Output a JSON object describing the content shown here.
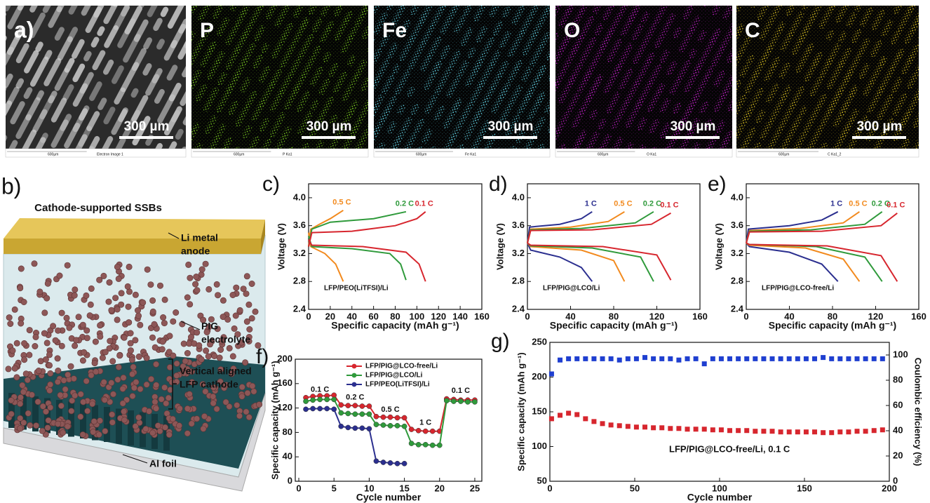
{
  "sem": {
    "panels": [
      {
        "label": "a)",
        "scale_bar": "300 µm",
        "ruler": "600µm",
        "caption": "Electron Image 1",
        "color": "#c8c8c8"
      },
      {
        "label": "P",
        "scale_bar": "300 µm",
        "ruler": "600µm",
        "caption": "P Ka1",
        "color": "#7ed321"
      },
      {
        "label": "Fe",
        "scale_bar": "300 µm",
        "ruler": "600µm",
        "caption": "Fe Ka1",
        "color": "#62d4e6"
      },
      {
        "label": "O",
        "scale_bar": "300 µm",
        "ruler": "600µm",
        "caption": "O Ka1",
        "color": "#c51fcc"
      },
      {
        "label": "C",
        "scale_bar": "300 µm",
        "ruler": "600µm",
        "caption": "C Ka1_2",
        "color": "#d9c020"
      }
    ]
  },
  "schematic": {
    "label": "b)",
    "title": "Cathode-supported SSBs",
    "parts": [
      [
        "Li metal",
        "anode"
      ],
      [
        "PIG",
        "electrolyte"
      ],
      [
        "Vertical aligned",
        "LFP cathode"
      ],
      [
        "Al foil"
      ]
    ]
  },
  "chart_data": [
    {
      "type": "line",
      "label": "c)",
      "annotation": "LFP/PEO(LiTFSI)/Li",
      "x_label": "Specific capacity (mAh g⁻¹)",
      "y_label": "Voltage (V)",
      "xlim": [
        0,
        160
      ],
      "xticks": [
        0,
        20,
        40,
        60,
        80,
        100,
        120,
        140,
        160
      ],
      "ylim": [
        2.4,
        4.2
      ],
      "yticks": [
        2.4,
        2.8,
        3.2,
        3.6,
        {
          "value": 4,
          "label": "4.0"
        }
      ],
      "series": [
        {
          "name": "0.5 C",
          "color": "#f28a1e",
          "x": [
            0,
            2,
            10,
            20,
            32,
            null,
            0,
            2,
            15,
            25,
            32
          ],
          "values": [
            3.3,
            3.55,
            3.62,
            3.7,
            3.82,
            null,
            3.5,
            3.3,
            3.2,
            3.05,
            2.8
          ]
        },
        {
          "name": "0.2 C",
          "color": "#2f9a3b",
          "x": [
            0,
            3,
            20,
            60,
            90,
            null,
            0,
            3,
            40,
            75,
            85,
            90
          ],
          "values": [
            3.3,
            3.55,
            3.65,
            3.7,
            3.8,
            null,
            3.45,
            3.3,
            3.27,
            3.2,
            3.05,
            2.82
          ]
        },
        {
          "name": "0.1 C",
          "color": "#d7262e",
          "x": [
            0,
            3,
            40,
            80,
            100,
            108,
            null,
            0,
            3,
            50,
            90,
            102,
            108
          ],
          "values": [
            3.3,
            3.5,
            3.52,
            3.6,
            3.7,
            3.8,
            null,
            3.4,
            3.32,
            3.3,
            3.22,
            3.05,
            2.8
          ]
        }
      ]
    },
    {
      "type": "line",
      "label": "d)",
      "annotation": "LFP/PIG@LCO/Li",
      "x_label": "Specific capacity (mAh g⁻¹)",
      "y_label": "Voltage (V)",
      "xlim": [
        0,
        160
      ],
      "xticks": [
        0,
        40,
        80,
        120,
        160
      ],
      "ylim": [
        2.4,
        4.2
      ],
      "yticks": [
        2.4,
        2.8,
        3.2,
        3.6,
        {
          "value": 4,
          "label": "4.0"
        }
      ],
      "series": [
        {
          "name": "1 C",
          "color": "#2b2f8f",
          "x": [
            0,
            2,
            30,
            50,
            60,
            null,
            0,
            3,
            30,
            50,
            60
          ],
          "values": [
            3.35,
            3.58,
            3.62,
            3.7,
            3.8,
            null,
            3.35,
            3.25,
            3.15,
            3.0,
            2.8
          ]
        },
        {
          "name": "0.5 C",
          "color": "#f28a1e",
          "x": [
            0,
            3,
            40,
            75,
            90,
            null,
            0,
            3,
            50,
            80,
            90
          ],
          "values": [
            3.35,
            3.55,
            3.58,
            3.66,
            3.8,
            null,
            3.35,
            3.3,
            3.25,
            3.1,
            2.8
          ]
        },
        {
          "name": "0.2 C",
          "color": "#2f9a3b",
          "x": [
            0,
            3,
            50,
            100,
            117,
            null,
            0,
            3,
            60,
            105,
            117
          ],
          "values": [
            3.35,
            3.54,
            3.56,
            3.64,
            3.8,
            null,
            3.35,
            3.31,
            3.28,
            3.15,
            2.8
          ]
        },
        {
          "name": "0.1 C",
          "color": "#d7262e",
          "x": [
            0,
            3,
            60,
            115,
            133,
            null,
            0,
            3,
            70,
            120,
            133
          ],
          "values": [
            3.35,
            3.53,
            3.54,
            3.62,
            3.78,
            null,
            3.35,
            3.32,
            3.3,
            3.18,
            2.82
          ]
        }
      ]
    },
    {
      "type": "line",
      "label": "e)",
      "annotation": "LFP/PIG@LCO-free/Li",
      "x_label": "Specific capacity (mAh g⁻¹)",
      "y_label": "Voltage (V)",
      "xlim": [
        0,
        160
      ],
      "xticks": [
        0,
        40,
        80,
        120,
        160
      ],
      "ylim": [
        2.4,
        4.2
      ],
      "yticks": [
        2.4,
        2.8,
        3.2,
        3.6,
        {
          "value": 4,
          "label": "4.0"
        }
      ],
      "series": [
        {
          "name": "1 C",
          "color": "#2b2f8f",
          "x": [
            0,
            2,
            40,
            70,
            85,
            null,
            0,
            3,
            40,
            70,
            85
          ],
          "values": [
            3.35,
            3.55,
            3.6,
            3.68,
            3.8,
            null,
            3.35,
            3.3,
            3.22,
            3.05,
            2.8
          ]
        },
        {
          "name": "0.5 C",
          "color": "#f28a1e",
          "x": [
            0,
            3,
            50,
            90,
            105,
            null,
            0,
            3,
            55,
            90,
            105
          ],
          "values": [
            3.35,
            3.53,
            3.56,
            3.64,
            3.8,
            null,
            3.35,
            3.32,
            3.28,
            3.12,
            2.8
          ]
        },
        {
          "name": "0.2 C",
          "color": "#2f9a3b",
          "x": [
            0,
            3,
            60,
            110,
            126,
            null,
            0,
            3,
            65,
            110,
            126
          ],
          "values": [
            3.35,
            3.52,
            3.54,
            3.62,
            3.8,
            null,
            3.35,
            3.33,
            3.3,
            3.15,
            2.8
          ]
        },
        {
          "name": "0.1 C",
          "color": "#d7262e",
          "x": [
            0,
            3,
            70,
            125,
            140,
            null,
            0,
            3,
            75,
            125,
            140
          ],
          "values": [
            3.35,
            3.51,
            3.52,
            3.6,
            3.78,
            null,
            3.35,
            3.33,
            3.31,
            3.17,
            2.8
          ]
        }
      ]
    },
    {
      "type": "line",
      "label": "f)",
      "markers": true,
      "legend": "upper center",
      "x_label": "Cycle number",
      "y_label": "Specific capacity (mAh g⁻¹)",
      "annotations": [
        "0.1 C",
        "0.2 C",
        "0.5 C",
        "1 C",
        "0.1 C"
      ],
      "xlim": [
        -0.5,
        26
      ],
      "xticks": [
        0,
        5,
        10,
        15,
        20,
        25
      ],
      "ylim": [
        0,
        200
      ],
      "yticks": [
        0,
        40,
        80,
        120,
        160,
        200
      ],
      "x": [
        1,
        2,
        3,
        4,
        5,
        6,
        7,
        8,
        9,
        10,
        11,
        12,
        13,
        14,
        15,
        16,
        17,
        18,
        19,
        20,
        21,
        22,
        23,
        24,
        25
      ],
      "series": [
        {
          "name": "LFP/PIG@LCO-free/Li",
          "color": "#d7262e",
          "values": [
            137,
            139,
            140,
            140,
            141,
            125,
            124,
            124,
            123,
            123,
            106,
            105,
            105,
            104,
            104,
            85,
            83,
            82,
            82,
            82,
            135,
            134,
            133,
            133,
            133
          ]
        },
        {
          "name": "LFP/PIG@LCO/Li",
          "color": "#2f9a3b",
          "values": [
            131,
            133,
            134,
            134,
            134,
            112,
            111,
            110,
            110,
            110,
            93,
            92,
            91,
            91,
            90,
            62,
            60,
            60,
            59,
            59,
            132,
            131,
            131,
            130,
            130
          ]
        },
        {
          "name": "LFP/PEO(LiTFSI)/Li",
          "color": "#2b2f8f",
          "values": [
            118,
            119,
            119,
            119,
            118,
            90,
            88,
            87,
            87,
            86,
            33,
            31,
            30,
            29,
            29,
            null,
            null,
            null,
            null,
            null,
            null,
            null,
            null,
            null,
            null
          ]
        }
      ]
    },
    {
      "type": "scatter",
      "label": "g)",
      "annotation": "LFP/PIG@LCO-free/Li, 0.1 C",
      "x_label": "Cycle number",
      "y_label": "Specific capacity (mAh g⁻¹)",
      "y2_label": "Coulombic efficiency (%)",
      "xlim": [
        0,
        200
      ],
      "xticks": [
        0,
        50,
        100,
        150,
        200
      ],
      "ylim": [
        50,
        250
      ],
      "yticks": [
        50,
        100,
        150,
        200,
        250
      ],
      "y2lim": [
        0,
        110
      ],
      "y2ticks": [
        0,
        20,
        40,
        60,
        80,
        100
      ],
      "x": [
        1,
        6,
        11,
        16,
        21,
        26,
        31,
        36,
        41,
        46,
        51,
        56,
        61,
        66,
        71,
        76,
        81,
        86,
        91,
        96,
        101,
        106,
        111,
        116,
        121,
        126,
        131,
        136,
        141,
        146,
        151,
        156,
        161,
        166,
        171,
        176,
        181,
        186,
        191,
        196
      ],
      "series": [
        {
          "color": "#d7262e",
          "values": [
            140,
            145,
            148,
            146,
            140,
            136,
            133,
            131,
            130,
            129,
            128,
            128,
            127,
            127,
            126,
            126,
            125,
            125,
            125,
            124,
            124,
            123,
            123,
            123,
            122,
            122,
            122,
            121,
            121,
            121,
            121,
            121,
            120,
            120,
            121,
            121,
            122,
            122,
            123,
            124
          ]
        },
        {
          "color": "#1f3fd0",
          "axis": "y2",
          "values": [
            85,
            96,
            97,
            97,
            97,
            97,
            97,
            97,
            96,
            97,
            97,
            98,
            97,
            97,
            97,
            96,
            97,
            97,
            93,
            97,
            97,
            97,
            97,
            97,
            97,
            97,
            97,
            97,
            97,
            97,
            97,
            97,
            98,
            97,
            97,
            97,
            97,
            97,
            97,
            97
          ]
        }
      ]
    }
  ]
}
